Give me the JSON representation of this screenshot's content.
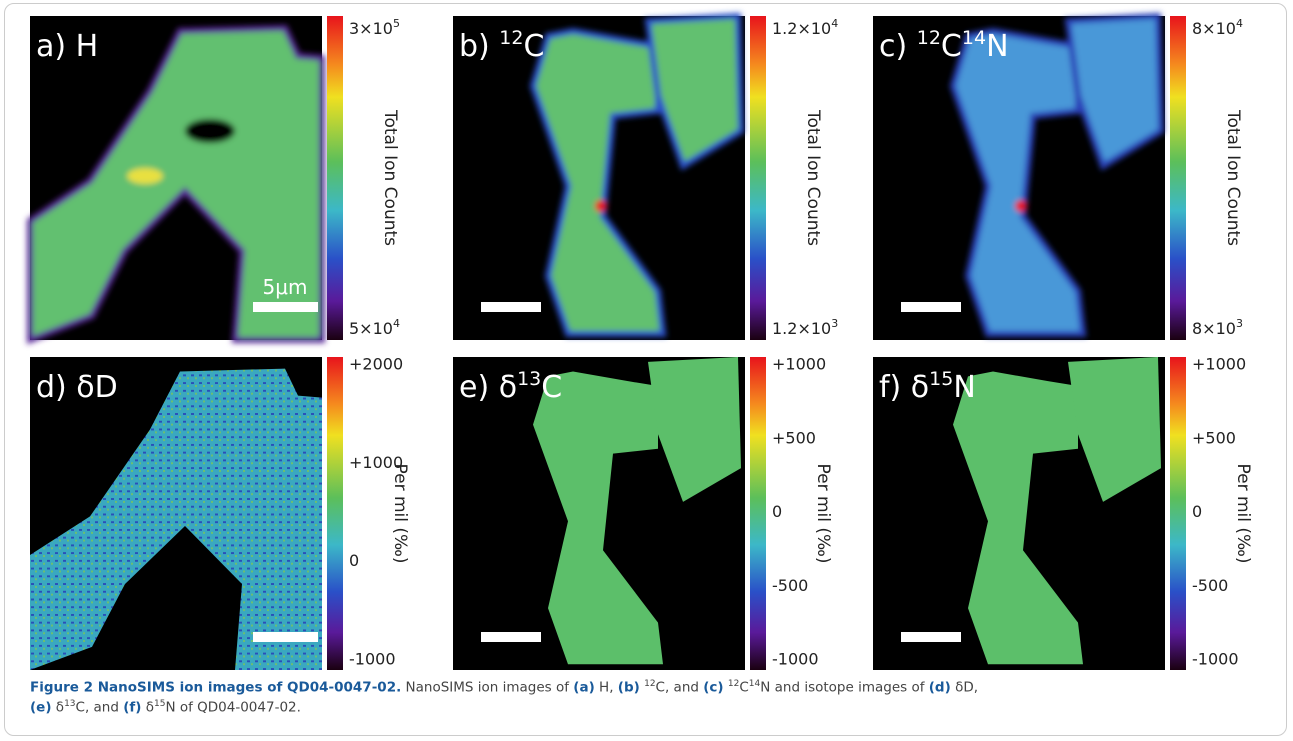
{
  "panels": [
    {
      "label": [
        {
          "text": "a) H"
        }
      ],
      "colorbar": {
        "title": "Total Ion Counts",
        "ticks": [
          {
            "text": "3×10",
            "sup": "5"
          },
          {
            "text": "5×10",
            "sup": "4"
          }
        ]
      },
      "scale_bar": "5μm"
    },
    {
      "label": [
        {
          "text": "b) "
        },
        {
          "sup": "12"
        },
        {
          "text": "C"
        }
      ],
      "colorbar": {
        "title": "Total Ion Counts",
        "ticks": [
          {
            "text": "1.2×10",
            "sup": "4"
          },
          {
            "text": "1.2×10",
            "sup": "3"
          }
        ]
      }
    },
    {
      "label": [
        {
          "text": "c) "
        },
        {
          "sup": "12"
        },
        {
          "text": "C"
        },
        {
          "sup": "14"
        },
        {
          "text": "N"
        }
      ],
      "colorbar": {
        "title": "Total Ion Counts",
        "ticks": [
          {
            "text": "8×10",
            "sup": "4"
          },
          {
            "text": "8×10",
            "sup": "3"
          }
        ]
      }
    },
    {
      "label": [
        {
          "text": "d) δD"
        }
      ],
      "colorbar": {
        "title": "Per mil (‰)",
        "clim": [
          -1000,
          2000
        ],
        "ticks": [
          {
            "value": 2000,
            "label": "+2000"
          },
          {
            "value": 1000,
            "label": "+1000"
          },
          0,
          -1000
        ]
      }
    },
    {
      "label": [
        {
          "text": "e) δ"
        },
        {
          "sup": "13"
        },
        {
          "text": "C"
        }
      ],
      "colorbar": {
        "title": "Per mil (‰)",
        "clim": [
          -1000,
          1000
        ],
        "ticks": [
          {
            "value": 1000,
            "label": "+1000"
          },
          {
            "value": 500,
            "label": "+500"
          },
          0,
          -500,
          -1000
        ]
      }
    },
    {
      "label": [
        {
          "text": "f) δ"
        },
        {
          "sup": "15"
        },
        {
          "text": "N"
        }
      ],
      "colorbar": {
        "title": "Per mil (‰)",
        "clim": [
          -1000,
          1000
        ],
        "ticks": [
          {
            "value": 1000,
            "label": "+1000"
          },
          {
            "value": 500,
            "label": "+500"
          },
          0,
          -500,
          -1000
        ]
      }
    }
  ],
  "caption": [
    [
      {
        "b": "Figure 2 NanoSIMS ion images of QD04-0047-02."
      },
      {
        "t": " NanoSIMS ion images of "
      },
      {
        "b": "(a)"
      },
      {
        "t": " H, "
      },
      {
        "b": "(b)"
      },
      {
        "t": " "
      },
      {
        "sup": "12"
      },
      {
        "t": "C, and "
      },
      {
        "b": "(c)"
      },
      {
        "t": " "
      },
      {
        "sup": "12"
      },
      {
        "t": "C"
      },
      {
        "sup": "14"
      },
      {
        "t": "N and isotope images of "
      },
      {
        "b": "(d)"
      },
      {
        "t": " δD,"
      }
    ],
    [
      {
        "b": "(e)"
      },
      {
        "t": " δ"
      },
      {
        "sup": "13"
      },
      {
        "t": "C, and "
      },
      {
        "b": "(f)"
      },
      {
        "t": " δ"
      },
      {
        "sup": "15"
      },
      {
        "t": "N of QD04-0047-02."
      }
    ]
  ]
}
